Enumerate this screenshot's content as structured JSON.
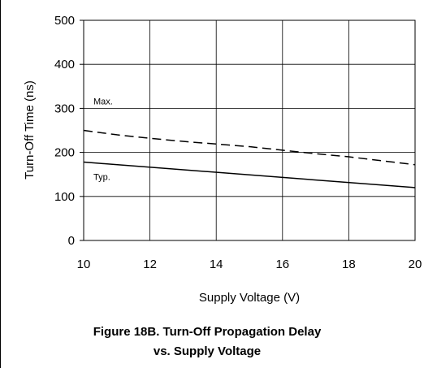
{
  "chart_data": {
    "type": "line",
    "xlabel": "Supply Voltage (V)",
    "ylabel": "Turn-Off Time (ns)",
    "xlim": [
      10,
      20
    ],
    "ylim": [
      0,
      500
    ],
    "x_ticks": [
      "10",
      "12",
      "14",
      "16",
      "18",
      "20"
    ],
    "y_ticks": [
      "0",
      "100",
      "200",
      "300",
      "400",
      "500"
    ],
    "grid": true,
    "series": [
      {
        "name": "Max.",
        "style": "dashed",
        "x": [
          10,
          11,
          12,
          13,
          14,
          15,
          16,
          17,
          18,
          19,
          20
        ],
        "y": [
          250,
          240,
          232,
          225,
          219,
          213,
          205,
          197,
          190,
          181,
          172
        ]
      },
      {
        "name": "Typ.",
        "style": "solid",
        "x": [
          10,
          20
        ],
        "y": [
          178,
          120
        ]
      }
    ]
  },
  "caption": {
    "line1": "Figure 18B. Turn-Off Propagation Delay",
    "line2": "vs. Supply Voltage"
  }
}
